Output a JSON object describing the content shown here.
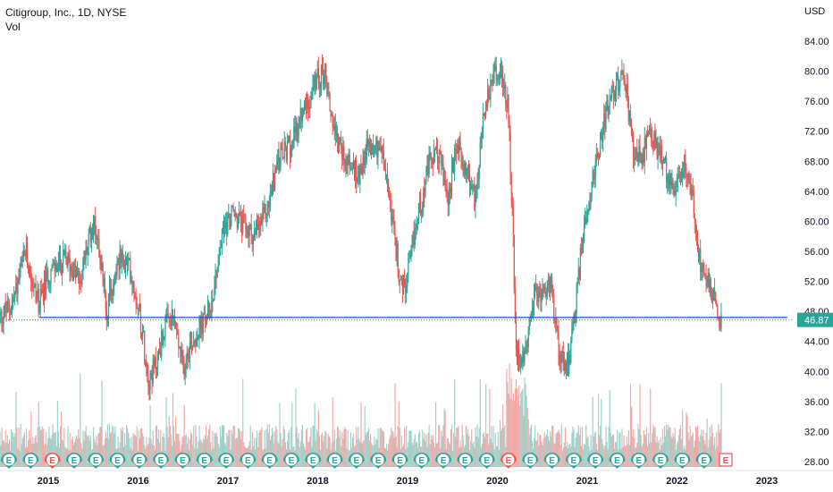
{
  "header": {
    "symbol_line": "Citigroup, Inc., 1D, NYSE",
    "volume_label": "Vol"
  },
  "chart_data": {
    "type": "candlestick",
    "currency_label": "USD",
    "y_ticks": [
      28,
      32,
      36,
      40,
      44,
      48,
      52,
      56,
      60,
      64,
      68,
      72,
      76,
      80,
      84
    ],
    "ylim": [
      26,
      86
    ],
    "x_ticks": [
      "2015",
      "2016",
      "2017",
      "2018",
      "2019",
      "2020",
      "2021",
      "2022",
      "2023"
    ],
    "xlim_years": [
      2014.45,
      2023.25
    ],
    "last_price": "46.87",
    "horizontal_line": {
      "value": 47.2,
      "from_year": 2014.9,
      "color": "#1e4fd6"
    },
    "price_path": [
      [
        2014.45,
        47
      ],
      [
        2014.6,
        49
      ],
      [
        2014.75,
        56
      ],
      [
        2014.82,
        52
      ],
      [
        2014.9,
        49
      ],
      [
        2015.0,
        53
      ],
      [
        2015.2,
        55
      ],
      [
        2015.35,
        52
      ],
      [
        2015.5,
        60
      ],
      [
        2015.55,
        58
      ],
      [
        2015.65,
        48
      ],
      [
        2015.78,
        55
      ],
      [
        2015.9,
        54
      ],
      [
        2016.0,
        49
      ],
      [
        2016.05,
        45
      ],
      [
        2016.12,
        39
      ],
      [
        2016.2,
        41
      ],
      [
        2016.3,
        46
      ],
      [
        2016.4,
        47
      ],
      [
        2016.5,
        40
      ],
      [
        2016.55,
        43
      ],
      [
        2016.7,
        46
      ],
      [
        2016.8,
        48
      ],
      [
        2016.88,
        54
      ],
      [
        2016.95,
        59
      ],
      [
        2017.05,
        61
      ],
      [
        2017.2,
        59
      ],
      [
        2017.3,
        58
      ],
      [
        2017.45,
        62
      ],
      [
        2017.55,
        68
      ],
      [
        2017.7,
        70
      ],
      [
        2017.85,
        75
      ],
      [
        2018.0,
        79
      ],
      [
        2018.08,
        80
      ],
      [
        2018.15,
        74
      ],
      [
        2018.28,
        69
      ],
      [
        2018.45,
        66
      ],
      [
        2018.55,
        70
      ],
      [
        2018.7,
        70
      ],
      [
        2018.8,
        63
      ],
      [
        2018.93,
        51
      ],
      [
        2018.98,
        51
      ],
      [
        2019.1,
        60
      ],
      [
        2019.25,
        68
      ],
      [
        2019.35,
        69
      ],
      [
        2019.45,
        63
      ],
      [
        2019.55,
        70
      ],
      [
        2019.65,
        67
      ],
      [
        2019.75,
        63
      ],
      [
        2019.85,
        74
      ],
      [
        2019.95,
        79
      ],
      [
        2020.05,
        80
      ],
      [
        2020.12,
        75
      ],
      [
        2020.17,
        60
      ],
      [
        2020.2,
        44
      ],
      [
        2020.25,
        40
      ],
      [
        2020.32,
        44
      ],
      [
        2020.42,
        50
      ],
      [
        2020.52,
        51
      ],
      [
        2020.6,
        51
      ],
      [
        2020.7,
        42
      ],
      [
        2020.8,
        41
      ],
      [
        2020.88,
        50
      ],
      [
        2020.95,
        58
      ],
      [
        2021.0,
        62
      ],
      [
        2021.1,
        68
      ],
      [
        2021.2,
        74
      ],
      [
        2021.3,
        78
      ],
      [
        2021.42,
        79
      ],
      [
        2021.5,
        70
      ],
      [
        2021.6,
        68
      ],
      [
        2021.7,
        72
      ],
      [
        2021.8,
        69
      ],
      [
        2021.9,
        66
      ],
      [
        2022.0,
        64
      ],
      [
        2022.08,
        68
      ],
      [
        2022.15,
        65
      ],
      [
        2022.25,
        55
      ],
      [
        2022.35,
        52
      ],
      [
        2022.45,
        48
      ],
      [
        2022.5,
        46.87
      ]
    ],
    "earnings_markers": [
      {
        "label": "E",
        "type": "past"
      },
      {
        "label": "E",
        "type": "past"
      },
      {
        "label": "E",
        "type": "past"
      },
      {
        "label": "E",
        "type": "past"
      },
      {
        "label": "E",
        "type": "past"
      },
      {
        "label": "E",
        "type": "past"
      },
      {
        "label": "E",
        "type": "past"
      },
      {
        "label": "E",
        "type": "past"
      },
      {
        "label": "E",
        "type": "past"
      },
      {
        "label": "E",
        "type": "past"
      },
      {
        "label": "E",
        "type": "past"
      },
      {
        "label": "E",
        "type": "past"
      },
      {
        "label": "E",
        "type": "past"
      },
      {
        "label": "E",
        "type": "past"
      },
      {
        "label": "E",
        "type": "past"
      },
      {
        "label": "E",
        "type": "past"
      },
      {
        "label": "E",
        "type": "past"
      },
      {
        "label": "E",
        "type": "past"
      },
      {
        "label": "E",
        "type": "past"
      },
      {
        "label": "E",
        "type": "past"
      },
      {
        "label": "E",
        "type": "past"
      },
      {
        "label": "E",
        "type": "past"
      },
      {
        "label": "E",
        "type": "past"
      },
      {
        "label": "E",
        "type": "past"
      },
      {
        "label": "E",
        "type": "past"
      },
      {
        "label": "E",
        "type": "past"
      },
      {
        "label": "E",
        "type": "past"
      },
      {
        "label": "E",
        "type": "past"
      },
      {
        "label": "E",
        "type": "past"
      },
      {
        "label": "E",
        "type": "past"
      },
      {
        "label": "E",
        "type": "past"
      },
      {
        "label": "E",
        "type": "past"
      },
      {
        "label": "E",
        "type": "past"
      },
      {
        "label": "E",
        "type": "upcoming"
      }
    ],
    "colors": {
      "up": "#26a69a",
      "down": "#ef5350",
      "volume_up": "#9fd3cc",
      "volume_down": "#f5a9a7",
      "level_line": "#1e4fd6",
      "price_label_bg": "#26a69a",
      "axis_text": "#131722",
      "earnings_ring": "#26a69a",
      "earnings_red": "#ef5350"
    }
  }
}
